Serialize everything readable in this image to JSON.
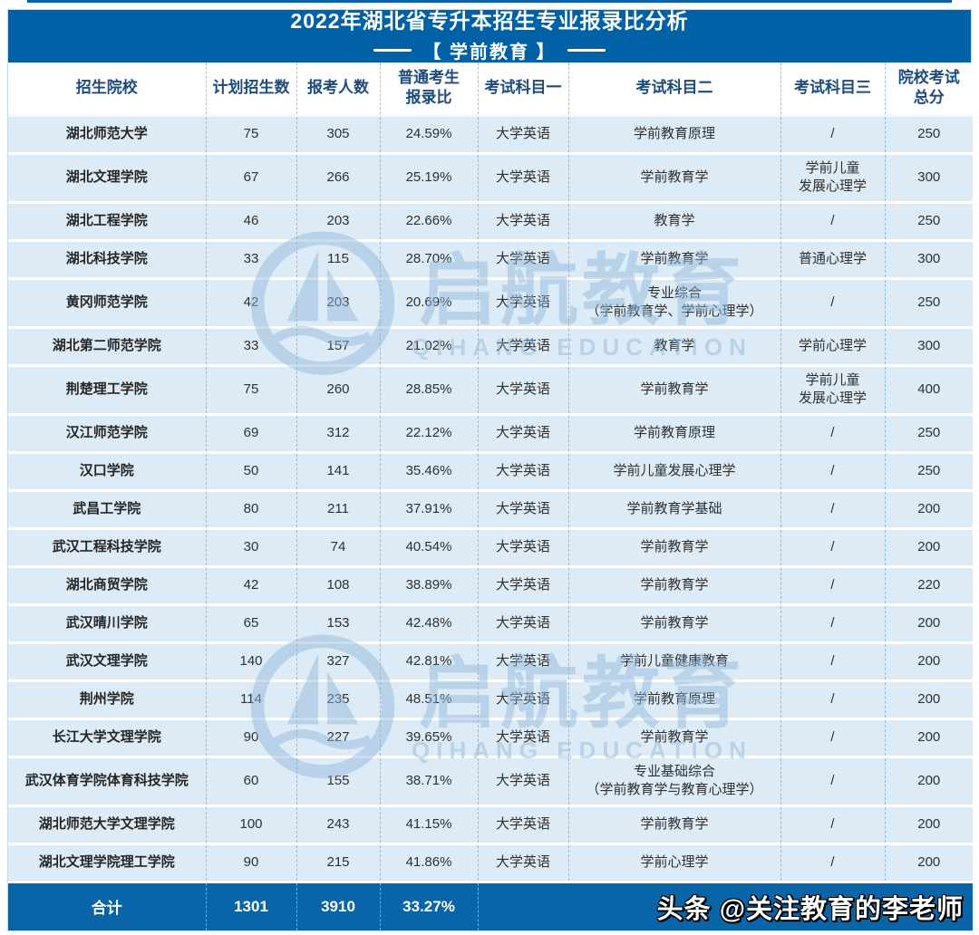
{
  "title": {
    "line1": "2022年湖北省专升本招生专业报录比分析",
    "line2": "【 学前教育 】"
  },
  "table": {
    "columns": {
      "school": "招生院校",
      "plan": "计划招生数",
      "applicants": "报考人数",
      "ratio": "普通考生\n报录比",
      "subject1": "考试科目一",
      "subject2": "考试科目二",
      "subject3": "考试科目三",
      "total": "院校考试\n总分"
    },
    "rows": [
      {
        "school": "湖北师范大学",
        "plan": "75",
        "applicants": "305",
        "ratio": "24.59%",
        "subject1": "大学英语",
        "subject2": "学前教育原理",
        "subject3": "/",
        "total": "250"
      },
      {
        "school": "湖北文理学院",
        "plan": "67",
        "applicants": "266",
        "ratio": "25.19%",
        "subject1": "大学英语",
        "subject2": "学前教育学",
        "subject3": "学前儿童\n发展心理学",
        "total": "300"
      },
      {
        "school": "湖北工程学院",
        "plan": "46",
        "applicants": "203",
        "ratio": "22.66%",
        "subject1": "大学英语",
        "subject2": "教育学",
        "subject3": "/",
        "total": "250"
      },
      {
        "school": "湖北科技学院",
        "plan": "33",
        "applicants": "115",
        "ratio": "28.70%",
        "subject1": "大学英语",
        "subject2": "学前教育学",
        "subject3": "普通心理学",
        "total": "300"
      },
      {
        "school": "黄冈师范学院",
        "plan": "42",
        "applicants": "203",
        "ratio": "20.69%",
        "subject1": "大学英语",
        "subject2": "专业综合\n（学前教育学、学前心理学）",
        "subject3": "/",
        "total": "250"
      },
      {
        "school": "湖北第二师范学院",
        "plan": "33",
        "applicants": "157",
        "ratio": "21.02%",
        "subject1": "大学英语",
        "subject2": "教育学",
        "subject3": "学前心理学",
        "total": "300"
      },
      {
        "school": "荆楚理工学院",
        "plan": "75",
        "applicants": "260",
        "ratio": "28.85%",
        "subject1": "大学英语",
        "subject2": "学前教育学",
        "subject3": "学前儿童\n发展心理学",
        "total": "400"
      },
      {
        "school": "汉江师范学院",
        "plan": "69",
        "applicants": "312",
        "ratio": "22.12%",
        "subject1": "大学英语",
        "subject2": "学前教育原理",
        "subject3": "/",
        "total": "250"
      },
      {
        "school": "汉口学院",
        "plan": "50",
        "applicants": "141",
        "ratio": "35.46%",
        "subject1": "大学英语",
        "subject2": "学前儿童发展心理学",
        "subject3": "/",
        "total": "250"
      },
      {
        "school": "武昌工学院",
        "plan": "80",
        "applicants": "211",
        "ratio": "37.91%",
        "subject1": "大学英语",
        "subject2": "学前教育学基础",
        "subject3": "/",
        "total": "200"
      },
      {
        "school": "武汉工程科技学院",
        "plan": "30",
        "applicants": "74",
        "ratio": "40.54%",
        "subject1": "大学英语",
        "subject2": "学前教育学",
        "subject3": "/",
        "total": "200"
      },
      {
        "school": "湖北商贸学院",
        "plan": "42",
        "applicants": "108",
        "ratio": "38.89%",
        "subject1": "大学英语",
        "subject2": "学前教育学",
        "subject3": "/",
        "total": "220"
      },
      {
        "school": "武汉晴川学院",
        "plan": "65",
        "applicants": "153",
        "ratio": "42.48%",
        "subject1": "大学英语",
        "subject2": "学前教育学",
        "subject3": "/",
        "total": "200"
      },
      {
        "school": "武汉文理学院",
        "plan": "140",
        "applicants": "327",
        "ratio": "42.81%",
        "subject1": "大学英语",
        "subject2": "学前儿童健康教育",
        "subject3": "/",
        "total": "200"
      },
      {
        "school": "荆州学院",
        "plan": "114",
        "applicants": "235",
        "ratio": "48.51%",
        "subject1": "大学英语",
        "subject2": "学前教育原理",
        "subject3": "/",
        "total": "200"
      },
      {
        "school": "长江大学文理学院",
        "plan": "90",
        "applicants": "227",
        "ratio": "39.65%",
        "subject1": "大学英语",
        "subject2": "学前教育学",
        "subject3": "/",
        "total": "200"
      },
      {
        "school": "武汉体育学院体育科技学院",
        "plan": "60",
        "applicants": "155",
        "ratio": "38.71%",
        "subject1": "大学英语",
        "subject2": "专业基础综合\n（学前教育学与教育心理学）",
        "subject3": "/",
        "total": "200"
      },
      {
        "school": "湖北师范大学文理学院",
        "plan": "100",
        "applicants": "243",
        "ratio": "41.15%",
        "subject1": "大学英语",
        "subject2": "学前教育学",
        "subject3": "/",
        "total": "200"
      },
      {
        "school": "湖北文理学院理工学院",
        "plan": "90",
        "applicants": "215",
        "ratio": "41.86%",
        "subject1": "大学英语",
        "subject2": "学前心理学",
        "subject3": "/",
        "total": "200"
      }
    ],
    "footer": {
      "label": "合计",
      "plan": "1301",
      "applicants": "3910",
      "ratio": "33.27%",
      "badge": "头条 @关注教育的李老师"
    }
  },
  "watermark": {
    "brand_cn": "启航教育",
    "brand_en": "QIHANG EDUCATION"
  },
  "colors": {
    "header_blue": "#0061a6",
    "footer_blue": "#0a64a8",
    "row_blue": "#dcebf6",
    "header_text_blue": "#1c4b7d",
    "watermark_blue": "#8fb9dd"
  }
}
